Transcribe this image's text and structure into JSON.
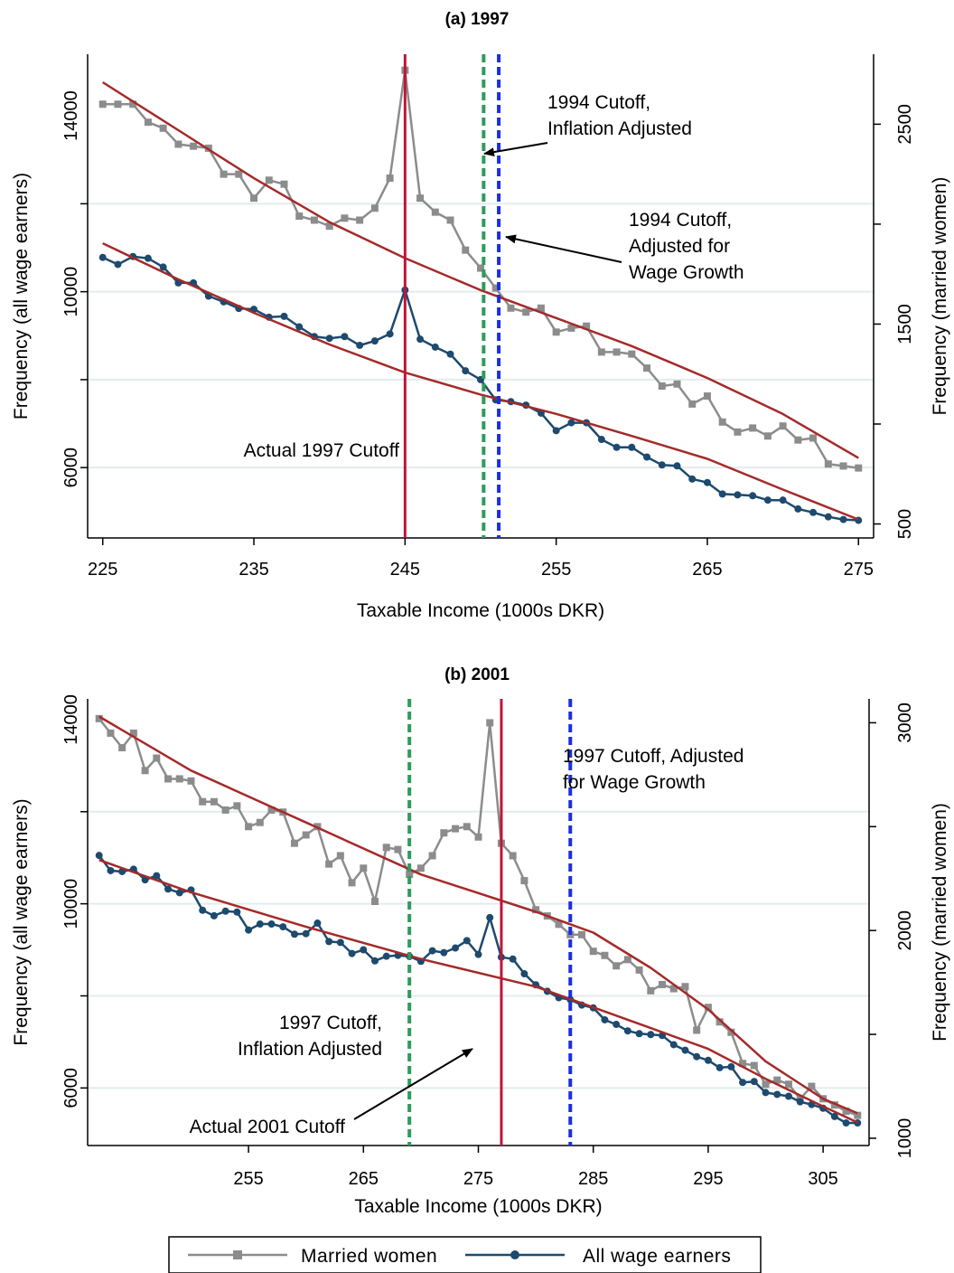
{
  "chart_data": [
    {
      "type": "line",
      "title": "(a) 1997",
      "xlabel": "Taxable Income (1000s DKR)",
      "ylabel_left": "Frequency (all wage earners)",
      "ylabel_right": "Frequency (married women)",
      "xlim": [
        224,
        276
      ],
      "ylim_left": [
        4400,
        15400
      ],
      "ylim_right": [
        430,
        2850
      ],
      "xticks": [
        "225",
        "235",
        "245",
        "255",
        "265",
        "275"
      ],
      "yticks_left": [
        "6000",
        "10000",
        "14000"
      ],
      "yticks_right": [
        "500",
        "1500",
        "2500"
      ],
      "grid_left": [
        6000,
        8000,
        10000,
        12000
      ],
      "grid": true,
      "vlines": [
        {
          "x": 245,
          "style": "solid",
          "color": "#c0143c"
        },
        {
          "x": 250.2,
          "style": "dashed",
          "color": "#2e9b5a"
        },
        {
          "x": 251.2,
          "style": "dashed",
          "color": "#1a2fe0"
        }
      ],
      "annotations": [
        {
          "lines": [
            "1994 Cutoff,",
            "Inflation Adjusted"
          ]
        },
        {
          "lines": [
            "1994 Cutoff,",
            "Adjusted for",
            "Wage Growth"
          ]
        },
        {
          "lines": [
            "Actual 1997 Cutoff"
          ]
        }
      ],
      "series": [
        {
          "name": "Married women",
          "axis": "right",
          "color": "#8c8c8c",
          "marker": "square",
          "x": [
            225,
            226,
            227,
            228,
            229,
            230,
            231,
            232,
            233,
            234,
            235,
            236,
            237,
            238,
            239,
            240,
            241,
            242,
            243,
            244,
            245,
            246,
            247,
            248,
            249,
            250,
            251,
            252,
            253,
            254,
            255,
            256,
            257,
            258,
            259,
            260,
            261,
            262,
            263,
            264,
            265,
            266,
            267,
            268,
            269,
            270,
            271,
            272,
            273,
            274,
            275
          ],
          "y": [
            2600,
            2600,
            2600,
            2510,
            2480,
            2400,
            2390,
            2380,
            2250,
            2250,
            2130,
            2220,
            2200,
            2040,
            2020,
            1990,
            2030,
            2020,
            2080,
            2230,
            2770,
            2130,
            2060,
            2020,
            1870,
            1780,
            1680,
            1580,
            1560,
            1580,
            1460,
            1480,
            1490,
            1360,
            1360,
            1350,
            1280,
            1190,
            1200,
            1100,
            1140,
            1010,
            960,
            980,
            940,
            990,
            920,
            930,
            800,
            790,
            780
          ]
        },
        {
          "name": "All wage earners",
          "axis": "left",
          "color": "#1d4a6e",
          "marker": "circle",
          "x": [
            225,
            226,
            227,
            228,
            229,
            230,
            231,
            232,
            233,
            234,
            235,
            236,
            237,
            238,
            239,
            240,
            241,
            242,
            243,
            244,
            245,
            246,
            247,
            248,
            249,
            250,
            251,
            252,
            253,
            254,
            255,
            256,
            257,
            258,
            259,
            260,
            261,
            262,
            263,
            264,
            265,
            266,
            267,
            268,
            269,
            270,
            271,
            272,
            273,
            274,
            275
          ],
          "y": [
            10780,
            10620,
            10800,
            10760,
            10560,
            10200,
            10200,
            9900,
            9770,
            9620,
            9600,
            9420,
            9440,
            9200,
            8980,
            8940,
            8980,
            8780,
            8880,
            9040,
            10040,
            8920,
            8740,
            8580,
            8200,
            8000,
            7540,
            7500,
            7420,
            7240,
            6840,
            7020,
            7020,
            6640,
            6460,
            6460,
            6240,
            6060,
            6040,
            5740,
            5660,
            5400,
            5380,
            5360,
            5260,
            5260,
            5060,
            4980,
            4880,
            4820,
            4800
          ]
        },
        {
          "name": "",
          "axis": "right",
          "color": "#a52a2a",
          "marker": "none",
          "x": [
            225,
            230,
            235,
            240,
            245,
            250,
            255,
            260,
            265,
            270,
            275
          ],
          "y": [
            2710,
            2470,
            2230,
            2010,
            1830,
            1670,
            1530,
            1390,
            1230,
            1050,
            830
          ]
        },
        {
          "name": "",
          "axis": "left",
          "color": "#a52a2a",
          "marker": "none",
          "x": [
            225,
            230,
            235,
            240,
            245,
            250,
            255,
            260,
            265,
            270,
            275
          ],
          "y": [
            11100,
            10280,
            9520,
            8800,
            8160,
            7660,
            7220,
            6720,
            6200,
            5500,
            4820
          ]
        }
      ]
    },
    {
      "type": "line",
      "title": "(b) 2001",
      "xlabel": "Taxable Income (1000s DKR)",
      "ylabel_left": "Frequency (all wage earners)",
      "ylabel_right": "Frequency (married women)",
      "xlim": [
        241,
        309
      ],
      "ylim_left": [
        4750,
        14450
      ],
      "ylim_right": [
        965,
        3115
      ],
      "xticks": [
        "255",
        "265",
        "275",
        "285",
        "295",
        "305"
      ],
      "yticks_left": [
        "6000",
        "10000",
        "14000"
      ],
      "yticks_right": [
        "1000",
        "2000",
        "3000"
      ],
      "grid_left": [
        6000,
        8000,
        10000,
        12000
      ],
      "grid": true,
      "vlines": [
        {
          "x": 277,
          "style": "solid",
          "color": "#c0143c"
        },
        {
          "x": 269,
          "style": "dashed",
          "color": "#2e9b5a"
        },
        {
          "x": 283,
          "style": "dashed",
          "color": "#1a2fe0"
        }
      ],
      "annotations": [
        {
          "lines": [
            "1997 Cutoff, Adjusted",
            "for Wage Growth"
          ]
        },
        {
          "lines": [
            "1997 Cutoff,",
            "Inflation Adjusted"
          ]
        },
        {
          "lines": [
            "Actual 2001 Cutoff"
          ]
        }
      ],
      "series": [
        {
          "name": "Married women",
          "axis": "right",
          "color": "#8c8c8c",
          "marker": "square",
          "x": [
            242,
            243,
            244,
            245,
            246,
            247,
            248,
            249,
            250,
            251,
            252,
            253,
            254,
            255,
            256,
            257,
            258,
            259,
            260,
            261,
            262,
            263,
            264,
            265,
            266,
            267,
            268,
            269,
            270,
            271,
            272,
            273,
            274,
            275,
            276,
            277,
            278,
            279,
            280,
            281,
            282,
            283,
            284,
            285,
            286,
            287,
            288,
            289,
            290,
            291,
            292,
            293,
            294,
            295,
            296,
            297,
            298,
            299,
            300,
            301,
            302,
            303,
            304,
            305,
            306,
            307,
            308
          ],
          "y": [
            3020,
            2950,
            2880,
            2950,
            2770,
            2830,
            2730,
            2730,
            2720,
            2620,
            2620,
            2580,
            2600,
            2500,
            2520,
            2580,
            2570,
            2420,
            2460,
            2500,
            2320,
            2360,
            2230,
            2300,
            2140,
            2400,
            2390,
            2270,
            2300,
            2360,
            2470,
            2490,
            2500,
            2450,
            3000,
            2420,
            2360,
            2240,
            2100,
            2070,
            2030,
            1980,
            1980,
            1900,
            1880,
            1830,
            1860,
            1810,
            1710,
            1740,
            1720,
            1730,
            1520,
            1630,
            1560,
            1510,
            1360,
            1350,
            1260,
            1280,
            1260,
            1190,
            1250,
            1190,
            1160,
            1130,
            1110
          ]
        },
        {
          "name": "All wage earners",
          "axis": "left",
          "color": "#1d4a6e",
          "marker": "circle",
          "x": [
            242,
            243,
            244,
            245,
            246,
            247,
            248,
            249,
            250,
            251,
            252,
            253,
            254,
            255,
            256,
            257,
            258,
            259,
            260,
            261,
            262,
            263,
            264,
            265,
            266,
            267,
            268,
            269,
            270,
            271,
            272,
            273,
            274,
            275,
            276,
            277,
            278,
            279,
            280,
            281,
            282,
            283,
            284,
            285,
            286,
            287,
            288,
            289,
            290,
            291,
            292,
            293,
            294,
            295,
            296,
            297,
            298,
            299,
            300,
            301,
            302,
            303,
            304,
            305,
            306,
            307,
            308
          ],
          "y": [
            11050,
            10720,
            10700,
            10750,
            10520,
            10610,
            10320,
            10240,
            10300,
            9860,
            9740,
            9840,
            9820,
            9430,
            9560,
            9560,
            9500,
            9340,
            9350,
            9580,
            9180,
            9160,
            8920,
            9000,
            8760,
            8860,
            8880,
            8860,
            8750,
            8980,
            8940,
            9040,
            9200,
            8900,
            9700,
            8840,
            8800,
            8480,
            8240,
            8100,
            7960,
            7920,
            7800,
            7740,
            7480,
            7380,
            7240,
            7180,
            7160,
            7140,
            6940,
            6820,
            6680,
            6600,
            6440,
            6460,
            6120,
            6140,
            5900,
            5860,
            5820,
            5700,
            5640,
            5560,
            5380,
            5240,
            5240
          ]
        },
        {
          "name": "",
          "axis": "right",
          "color": "#a52a2a",
          "marker": "none",
          "x": [
            242,
            250,
            260,
            270,
            280,
            285,
            290,
            295,
            300,
            305,
            308
          ],
          "y": [
            3030,
            2770,
            2520,
            2270,
            2090,
            1990,
            1820,
            1620,
            1370,
            1190,
            1120
          ]
        },
        {
          "name": "",
          "axis": "left",
          "color": "#a52a2a",
          "marker": "none",
          "x": [
            242,
            250,
            260,
            270,
            280,
            285,
            290,
            295,
            300,
            305,
            308
          ],
          "y": [
            10950,
            10250,
            9500,
            8800,
            8200,
            7750,
            7300,
            6850,
            6200,
            5600,
            5250
          ]
        }
      ]
    }
  ],
  "legend": {
    "position": "bottom",
    "items": [
      {
        "label": "Married women",
        "color": "#8c8c8c",
        "marker": "square"
      },
      {
        "label": "All wage earners",
        "color": "#1d4a6e",
        "marker": "circle"
      }
    ]
  }
}
